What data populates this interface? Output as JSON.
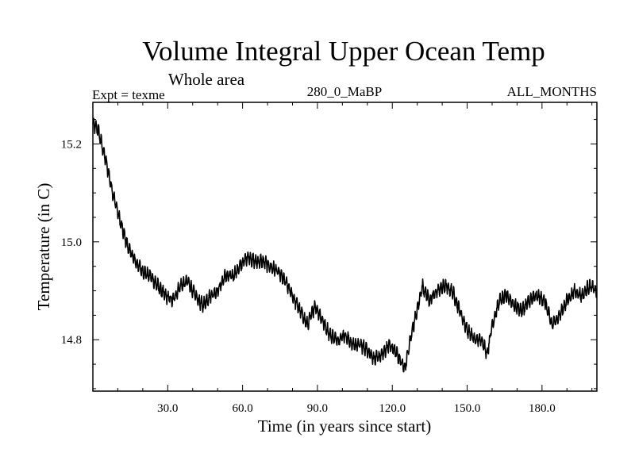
{
  "chart_data": {
    "type": "line",
    "title": "Volume Integral Upper Ocean Temp",
    "subtitle": "Whole area",
    "experiment_label": "Expt = texme",
    "run_label": "280_0_MaBP",
    "months_label": "ALL_MONTHS",
    "xlabel": "Time (in years since start)",
    "ylabel": "Temperature (in C)",
    "xlim": [
      0,
      202
    ],
    "ylim": [
      14.695,
      15.285
    ],
    "x_ticks": [
      30,
      60,
      90,
      120,
      150,
      180
    ],
    "x_tick_labels": [
      "30.0",
      "60.0",
      "90.0",
      "120.0",
      "150.0",
      "180.0"
    ],
    "y_ticks": [
      14.8,
      15.0,
      15.2
    ],
    "y_tick_labels": [
      "14.8",
      "15.0",
      "15.2"
    ],
    "grid": false,
    "series": [
      {
        "name": "Temperature",
        "x": [
          0,
          2,
          5,
          8,
          11,
          14,
          17,
          20,
          23,
          26,
          29,
          32,
          35,
          38,
          41,
          44,
          47,
          50,
          53,
          56,
          59,
          62,
          65,
          68,
          71,
          74,
          77,
          80,
          83,
          86,
          89,
          92,
          95,
          98,
          101,
          104,
          107,
          110,
          113,
          116,
          119,
          122,
          125,
          128,
          130,
          132,
          135,
          138,
          141,
          144,
          147,
          150,
          153,
          156,
          158,
          160,
          163,
          166,
          169,
          172,
          175,
          178,
          181,
          184,
          187,
          190,
          193,
          196,
          199,
          202
        ],
        "values": [
          15.24,
          15.23,
          15.17,
          15.1,
          15.04,
          14.99,
          14.96,
          14.94,
          14.93,
          14.91,
          14.89,
          14.88,
          14.91,
          14.92,
          14.89,
          14.87,
          14.89,
          14.9,
          14.93,
          14.93,
          14.95,
          14.97,
          14.96,
          14.96,
          14.95,
          14.94,
          14.92,
          14.89,
          14.86,
          14.83,
          14.87,
          14.84,
          14.81,
          14.8,
          14.81,
          14.79,
          14.79,
          14.78,
          14.76,
          14.77,
          14.79,
          14.77,
          14.74,
          14.82,
          14.86,
          14.91,
          14.88,
          14.9,
          14.91,
          14.9,
          14.86,
          14.82,
          14.8,
          14.8,
          14.77,
          14.83,
          14.88,
          14.89,
          14.87,
          14.86,
          14.88,
          14.89,
          14.88,
          14.83,
          14.85,
          14.88,
          14.9,
          14.89,
          14.91,
          14.9
        ]
      }
    ]
  }
}
